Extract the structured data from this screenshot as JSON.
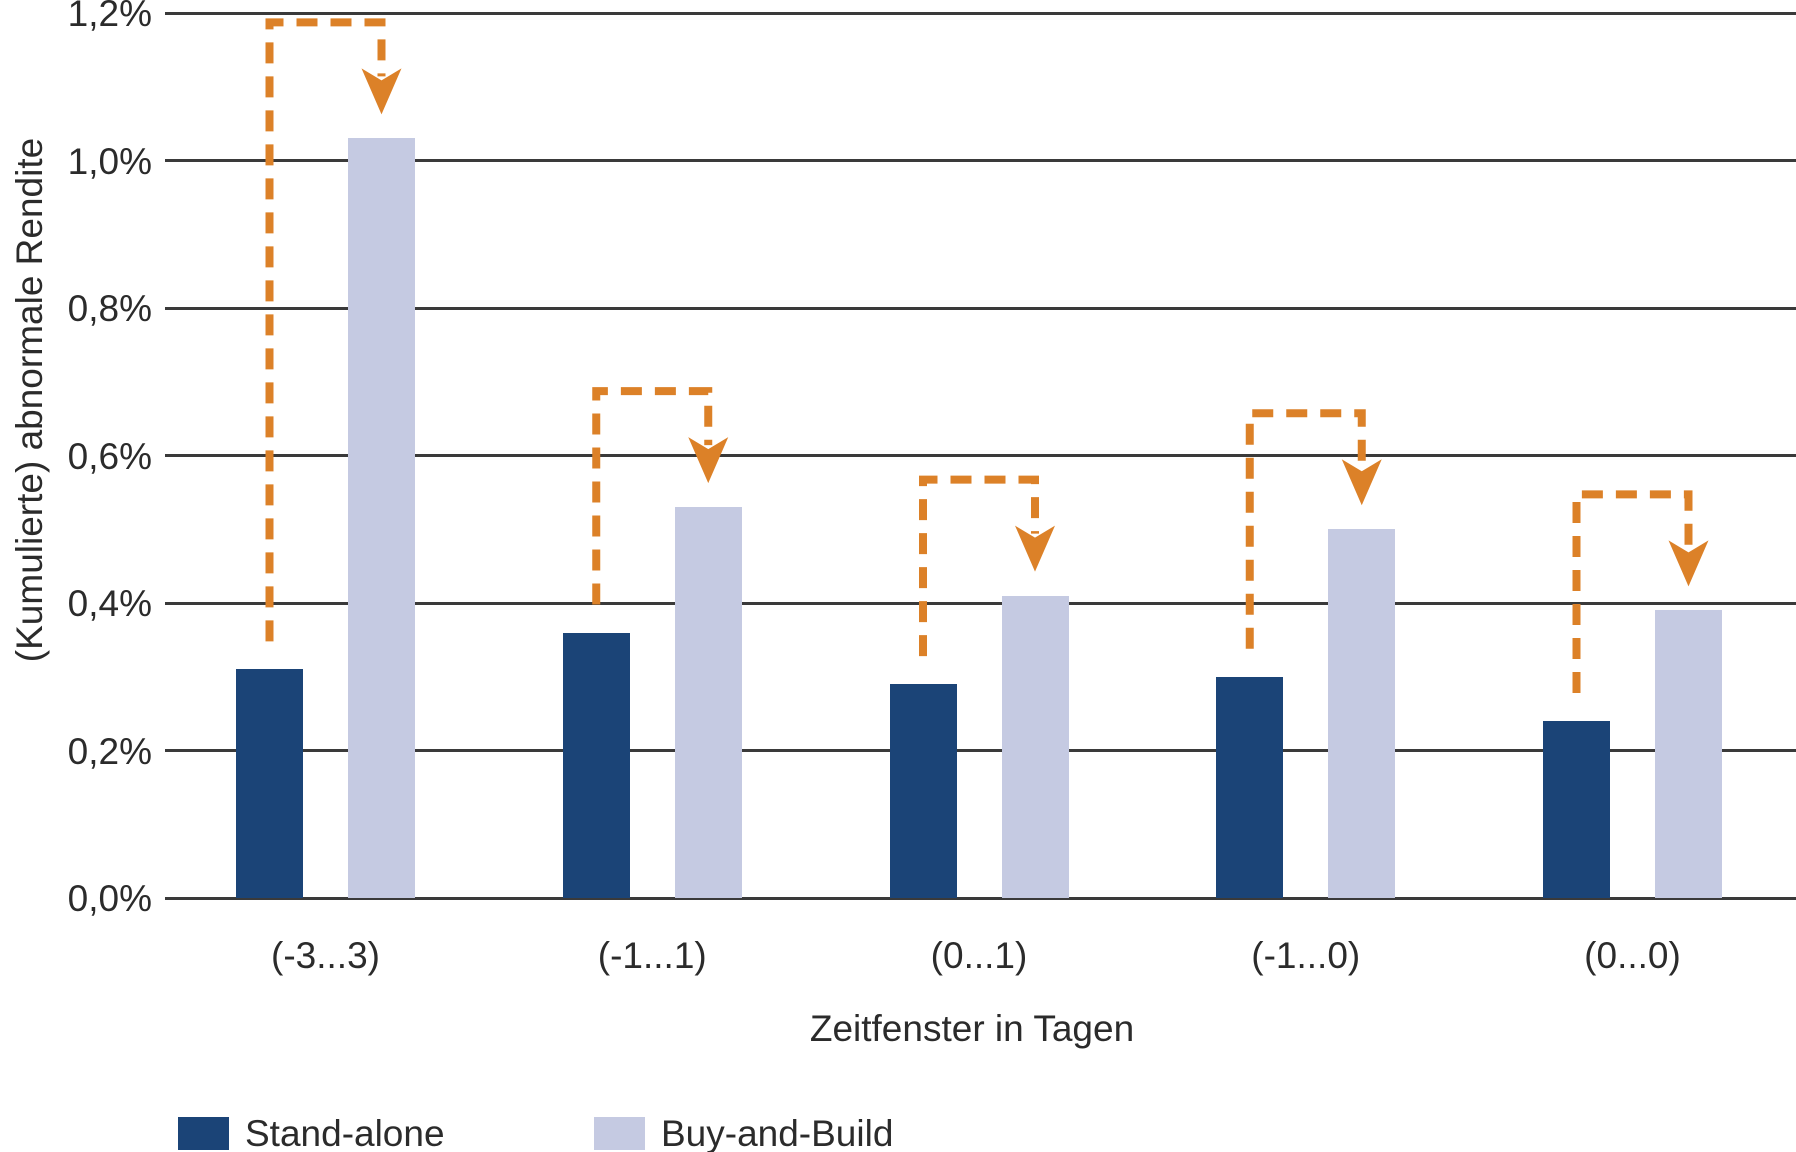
{
  "chart_data": {
    "type": "bar",
    "title": "",
    "xlabel": "Zeitfenster in Tagen",
    "ylabel": "(Kumulierte) abnormale Rendite",
    "categories": [
      "(-3...3)",
      "(-1...1)",
      "(0...1)",
      "(-1...0)",
      "(0...0)"
    ],
    "series": [
      {
        "name": "Stand-alone",
        "color": "#1B4477",
        "values": [
          0.31,
          0.36,
          0.29,
          0.3,
          0.24
        ]
      },
      {
        "name": "Buy-and-Build",
        "color": "#C5CAE2",
        "values": [
          1.03,
          0.53,
          0.41,
          0.5,
          0.39
        ]
      }
    ],
    "value_unit": "%",
    "ylim": [
      0.0,
      1.2
    ],
    "yticks": [
      {
        "label": "0,0%",
        "value": 0.0
      },
      {
        "label": "0,2%",
        "value": 0.2
      },
      {
        "label": "0,4%",
        "value": 0.4
      },
      {
        "label": "0,6%",
        "value": 0.6
      },
      {
        "label": "0,8%",
        "value": 0.8
      },
      {
        "label": "1,0%",
        "value": 1.0
      },
      {
        "label": "1,2%",
        "value": 1.2
      }
    ],
    "grid": "horizontal",
    "gridline_color": "#3A3A3A",
    "legend_position": "bottom-left",
    "annotations": {
      "kind": "difference-arrows",
      "style": "dashed",
      "color": "#DC8128",
      "description": "In every category an orange dashed elbow arrow leads from above the Stand-alone bar up, across, and down onto the top of the Buy-and-Build bar"
    }
  }
}
